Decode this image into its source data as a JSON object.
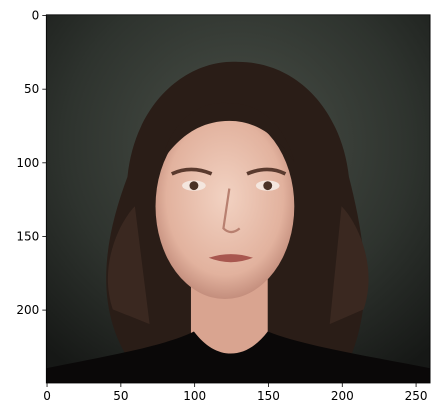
{
  "chart_data": {
    "type": "image",
    "xlim": [
      -0.5,
      259.5
    ],
    "ylim": [
      249.5,
      -0.5
    ],
    "xticks": [
      0,
      50,
      100,
      150,
      200,
      250
    ],
    "yticks": [
      0,
      50,
      100,
      150,
      200
    ]
  }
}
